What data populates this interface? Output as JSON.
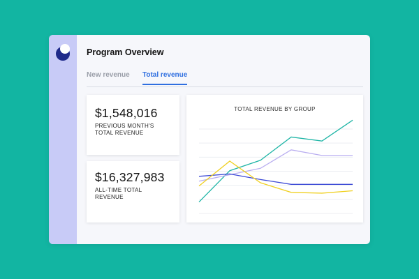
{
  "app": {
    "title": "Program Overview",
    "logo_icon": "brand-logo-icon"
  },
  "tabs": [
    {
      "label": "New revenue",
      "active": false
    },
    {
      "label": "Total revenue",
      "active": true
    }
  ],
  "stats": [
    {
      "value": "$1,548,016",
      "label": "PREVIOUS MONTH'S TOTAL REVENUE"
    },
    {
      "value": "$16,327,983",
      "label": "ALL-TIME TOTAL REVENUE"
    }
  ],
  "colors": {
    "background": "#12b5a2",
    "sidebar": "#c8cbf7",
    "accent": "#2f6fe0"
  },
  "chart_data": {
    "type": "line",
    "title": "TOTAL REVENUE BY GROUP",
    "xlabel": "",
    "ylabel": "",
    "x": [
      0,
      1,
      2,
      3,
      4,
      5
    ],
    "ylim": [
      0,
      100
    ],
    "grid": true,
    "series": [
      {
        "color": "#1fb5a6",
        "values": [
          16,
          55,
          68,
          97,
          92,
          118
        ]
      },
      {
        "color": "#b9aef0",
        "values": [
          42,
          50,
          58,
          81,
          74,
          74
        ]
      },
      {
        "color": "#3d4ad6",
        "values": [
          48,
          51,
          44,
          38,
          38,
          38
        ]
      },
      {
        "color": "#f0d020",
        "values": [
          36,
          67,
          40,
          28,
          27,
          30
        ]
      }
    ]
  }
}
